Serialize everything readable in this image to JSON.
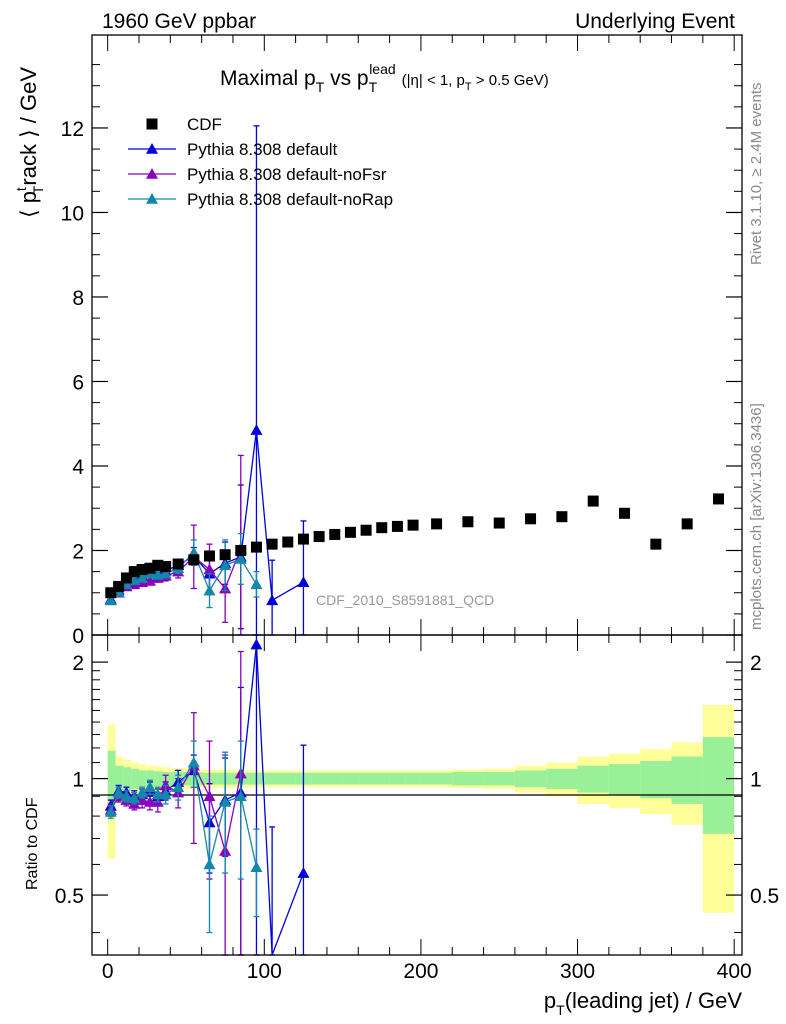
{
  "header": {
    "left": "1960 GeV ppbar",
    "right": "Underlying Event"
  },
  "side": {
    "rivet": "Rivet 3.1.10, ≥ 2.4M events",
    "mcplots": "mcplots.cern.ch [arXiv:1306.3436]"
  },
  "chart_data": [
    {
      "type": "scatter",
      "panel": "main",
      "title": {
        "main": "Maximal p",
        "sub1": "T",
        "mid": " vs p",
        "sub2": "T",
        "sup2": "lead",
        "tail": "(|η| < 1, p",
        "sub3": "T",
        "end": " > 0.5 GeV)"
      },
      "ylabel": {
        "pre": "⟨ p",
        "sup": "t",
        "sub": "T",
        "post": "rack ⟩ / GeV"
      },
      "watermark": "CDF_2010_S8591881_QCD",
      "xlim": [
        -10,
        405
      ],
      "ylim": [
        0,
        14.2
      ],
      "yticks": [
        0,
        2,
        4,
        6,
        8,
        10,
        12
      ],
      "ytick_labels": [
        "0",
        "2",
        "4",
        "6",
        "8",
        "10",
        "12"
      ],
      "legend_placement": "top-left",
      "series": [
        {
          "name": "CDF",
          "color": "#000000",
          "marker": "square",
          "line": false,
          "x": [
            2,
            7,
            12,
            17,
            22,
            27,
            32,
            37,
            45,
            55,
            65,
            75,
            85,
            95,
            105,
            115,
            125,
            135,
            145,
            155,
            165,
            175,
            185,
            195,
            210,
            230,
            250,
            270,
            290,
            310,
            330,
            350,
            370,
            390
          ],
          "y": [
            1.0,
            1.15,
            1.35,
            1.5,
            1.55,
            1.58,
            1.65,
            1.62,
            1.68,
            1.78,
            1.87,
            1.9,
            2.0,
            2.08,
            2.15,
            2.2,
            2.27,
            2.33,
            2.38,
            2.43,
            2.48,
            2.54,
            2.57,
            2.6,
            2.63,
            2.68,
            2.65,
            2.75,
            2.8,
            3.17,
            2.88,
            2.15,
            2.63,
            3.22
          ]
        },
        {
          "name": "Pythia 8.308 default",
          "color": "#0000dd",
          "marker": "triangle",
          "line": true,
          "x": [
            2,
            7,
            12,
            17,
            22,
            27,
            32,
            37,
            45,
            55,
            65,
            75,
            85,
            95,
            105,
            125
          ],
          "y": [
            0.85,
            1.07,
            1.25,
            1.35,
            1.4,
            1.48,
            1.48,
            1.52,
            1.65,
            1.87,
            1.45,
            1.7,
            1.85,
            4.85,
            0.82,
            1.25
          ],
          "yerr": [
            0.05,
            0.05,
            0.05,
            0.06,
            0.06,
            0.07,
            0.08,
            0.09,
            0.12,
            0.2,
            0.4,
            0.5,
            1.7,
            7.2,
            0.95,
            1.45
          ]
        },
        {
          "name": "Pythia 8.308 default-noFsr",
          "color": "#8800bb",
          "marker": "triangle",
          "line": true,
          "x": [
            2,
            7,
            12,
            17,
            22,
            27,
            32,
            37,
            45,
            55,
            65,
            75,
            85
          ],
          "y": [
            0.82,
            1.0,
            1.15,
            1.2,
            1.25,
            1.28,
            1.35,
            1.4,
            1.5,
            1.85,
            1.55,
            1.1,
            2.05
          ],
          "yerr": [
            0.05,
            0.05,
            0.06,
            0.06,
            0.07,
            0.08,
            0.1,
            0.12,
            0.15,
            0.75,
            0.6,
            0.8,
            2.2
          ]
        },
        {
          "name": "Pythia 8.308 default-noRap",
          "color": "#1488aa",
          "marker": "triangle",
          "line": true,
          "x": [
            2,
            7,
            12,
            17,
            22,
            27,
            32,
            37,
            45,
            55,
            65,
            75,
            85,
            95
          ],
          "y": [
            0.82,
            1.02,
            1.2,
            1.3,
            1.35,
            1.45,
            1.42,
            1.45,
            1.58,
            1.95,
            1.05,
            1.65,
            1.8,
            1.2
          ],
          "yerr": [
            0.05,
            0.05,
            0.05,
            0.06,
            0.06,
            0.07,
            0.08,
            0.09,
            0.12,
            0.3,
            0.4,
            0.6,
            0.6,
            0.3
          ]
        }
      ]
    },
    {
      "type": "scatter",
      "panel": "ratio",
      "ylabel": "Ratio to CDF",
      "xlabel": {
        "pre": "p",
        "sub": "T",
        "post": "(leading jet) / GeV"
      },
      "xlim": [
        -10,
        405
      ],
      "xticks": [
        0,
        100,
        200,
        300,
        400
      ],
      "xtick_labels": [
        "0",
        "100",
        "200",
        "300",
        "400"
      ],
      "ylim": [
        0.35,
        2.35
      ],
      "yticks": [
        0.5,
        1,
        2
      ],
      "ytick_labels": [
        "0.5",
        "1",
        "2"
      ],
      "bands": {
        "edges": [
          0,
          5,
          10,
          15,
          20,
          25,
          30,
          35,
          40,
          50,
          60,
          70,
          80,
          90,
          100,
          110,
          120,
          130,
          140,
          150,
          160,
          170,
          180,
          190,
          200,
          220,
          240,
          260,
          280,
          300,
          320,
          340,
          360,
          380,
          400
        ],
        "inner": [
          0.18,
          0.08,
          0.07,
          0.06,
          0.05,
          0.05,
          0.045,
          0.04,
          0.04,
          0.04,
          0.035,
          0.035,
          0.035,
          0.035,
          0.035,
          0.035,
          0.035,
          0.035,
          0.035,
          0.035,
          0.035,
          0.035,
          0.035,
          0.035,
          0.035,
          0.04,
          0.04,
          0.05,
          0.06,
          0.08,
          0.09,
          0.11,
          0.14,
          0.28
        ],
        "outer": [
          0.38,
          0.14,
          0.12,
          0.1,
          0.09,
          0.08,
          0.075,
          0.07,
          0.065,
          0.06,
          0.055,
          0.055,
          0.05,
          0.05,
          0.05,
          0.05,
          0.05,
          0.05,
          0.05,
          0.05,
          0.05,
          0.05,
          0.05,
          0.05,
          0.05,
          0.055,
          0.06,
          0.08,
          0.1,
          0.14,
          0.16,
          0.19,
          0.24,
          0.55
        ],
        "inner_color": "#99f099",
        "outer_color": "#ffff99"
      },
      "series": [
        {
          "name": "Pythia 8.308 default",
          "color": "#0000dd",
          "x": [
            2,
            7,
            12,
            17,
            22,
            27,
            32,
            37,
            45,
            55,
            65,
            75,
            85,
            95,
            105,
            125
          ],
          "y": [
            0.85,
            0.93,
            0.92,
            0.9,
            0.91,
            0.94,
            0.9,
            0.93,
            0.98,
            1.05,
            0.77,
            0.88,
            0.92,
            2.22,
            0.3,
            0.57
          ],
          "yerr": [
            0.03,
            0.03,
            0.03,
            0.03,
            0.03,
            0.04,
            0.04,
            0.05,
            0.07,
            0.1,
            0.2,
            0.25,
            0.8,
            3.3,
            0.45,
            0.65
          ]
        },
        {
          "name": "Pythia 8.308 default-noFsr",
          "color": "#8800bb",
          "x": [
            2,
            7,
            12,
            17,
            22,
            27,
            32,
            37,
            45,
            55,
            65,
            75,
            85
          ],
          "y": [
            0.83,
            0.9,
            0.88,
            0.86,
            0.88,
            0.87,
            0.87,
            0.96,
            0.92,
            1.08,
            0.9,
            0.65,
            1.03
          ],
          "yerr": [
            0.03,
            0.03,
            0.03,
            0.03,
            0.04,
            0.04,
            0.05,
            0.06,
            0.08,
            0.4,
            0.35,
            0.5,
            1.1
          ]
        },
        {
          "name": "Pythia 8.308 default-noRap",
          "color": "#1488aa",
          "x": [
            2,
            7,
            12,
            17,
            22,
            27,
            32,
            37,
            45,
            55,
            65,
            75,
            85,
            95
          ],
          "y": [
            0.82,
            0.92,
            0.9,
            0.89,
            0.92,
            0.95,
            0.91,
            0.91,
            0.95,
            1.1,
            0.6,
            0.87,
            0.9,
            0.59
          ],
          "yerr": [
            0.03,
            0.03,
            0.03,
            0.03,
            0.03,
            0.04,
            0.04,
            0.05,
            0.07,
            0.15,
            0.2,
            0.3,
            0.35,
            0.15
          ]
        }
      ]
    }
  ]
}
